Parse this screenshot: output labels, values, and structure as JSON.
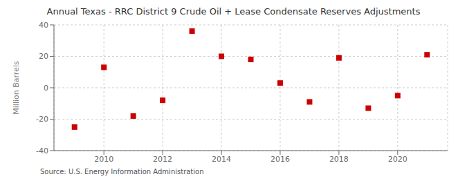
{
  "chart_data": {
    "type": "scatter",
    "title": "Annual Texas - RRC District 9 Crude Oil + Lease Condensate Reserves Adjustments",
    "ylabel": "Million Barrels",
    "annotation": "Source: U.S. Energy Information Administration",
    "x": [
      2009,
      2010,
      2011,
      2012,
      2013,
      2014,
      2015,
      2016,
      2017,
      2018,
      2019,
      2020,
      2021
    ],
    "values": [
      -25,
      13,
      -18,
      -8,
      36,
      20,
      18,
      3,
      -9,
      19,
      -13,
      -5,
      21
    ],
    "color": "#cc0000",
    "marker": "square",
    "xlim": [
      2008.3,
      2021.7
    ],
    "xticks": [
      2010,
      2012,
      2014,
      2016,
      2018,
      2020
    ],
    "ylim": [
      -40,
      40
    ],
    "yticks": [
      -40,
      -20,
      0,
      20,
      40
    ],
    "grid": true
  }
}
